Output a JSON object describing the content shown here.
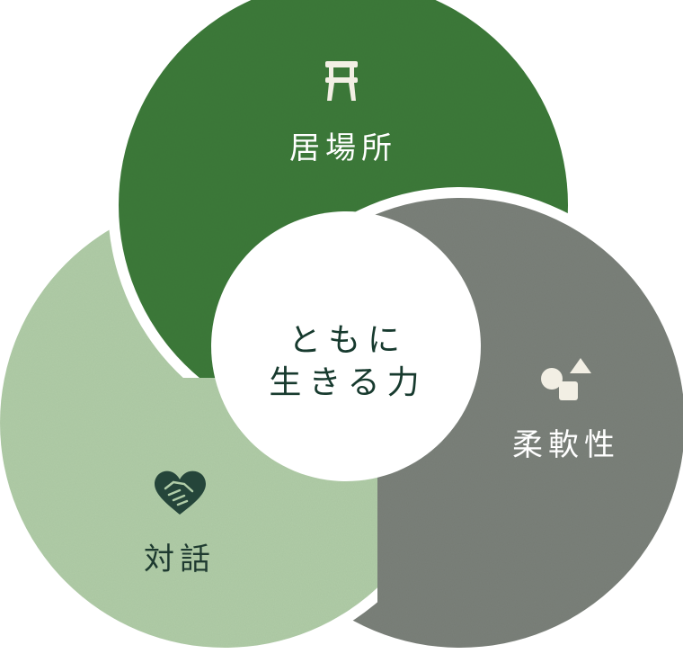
{
  "diagram": {
    "center": {
      "line1": "ともに",
      "line2": "生きる力"
    },
    "petals": [
      {
        "key": "ibasho",
        "label": "居場所",
        "icon": "stool-icon",
        "color": "#3e7a3a",
        "text_color": "#ffffff"
      },
      {
        "key": "juunansei",
        "label": "柔軟性",
        "icon": "shapes-icon",
        "color": "#7c817a",
        "text_color": "#ffffff"
      },
      {
        "key": "taiwa",
        "label": "対話",
        "icon": "handshake-heart-icon",
        "color": "#b1cda8",
        "text_color": "#1e3a30"
      }
    ],
    "colors": {
      "center_text": "#173a2e",
      "icon_light": "#f2efe4",
      "icon_dark": "#25453a",
      "background": "#ffffff"
    }
  }
}
